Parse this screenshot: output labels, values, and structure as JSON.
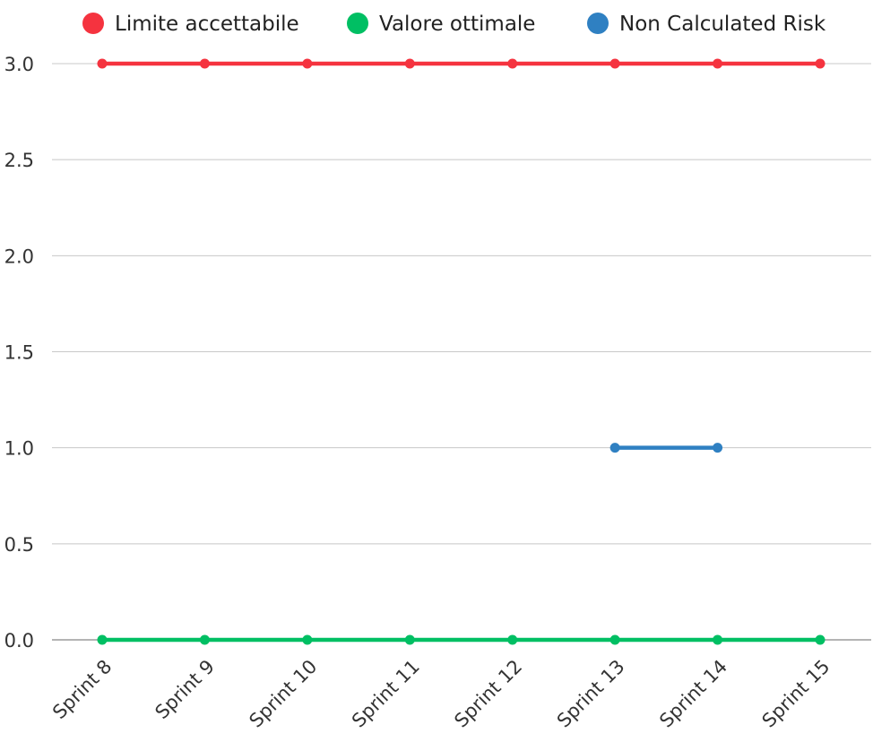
{
  "chart_data": {
    "type": "line",
    "categories": [
      "Sprint 8",
      "Sprint 9",
      "Sprint 10",
      "Sprint 11",
      "Sprint 12",
      "Sprint 13",
      "Sprint 14",
      "Sprint 15"
    ],
    "series": [
      {
        "name": "Limite accettabile",
        "color": "#f5333f",
        "values": [
          3,
          3,
          3,
          3,
          3,
          3,
          3,
          3
        ]
      },
      {
        "name": "Valore ottimale",
        "color": "#00bf63",
        "values": [
          0,
          0,
          0,
          0,
          0,
          0,
          0,
          0
        ]
      },
      {
        "name": "Non Calculated Risk",
        "color": "#2f80c2",
        "values": [
          null,
          null,
          null,
          null,
          null,
          1,
          1,
          null
        ]
      }
    ],
    "y_ticks": [
      "0.0",
      "0.5",
      "1.0",
      "1.5",
      "2.0",
      "2.5",
      "3.0"
    ],
    "ylim": [
      0,
      3
    ],
    "grid": true,
    "legend_position": "top"
  }
}
